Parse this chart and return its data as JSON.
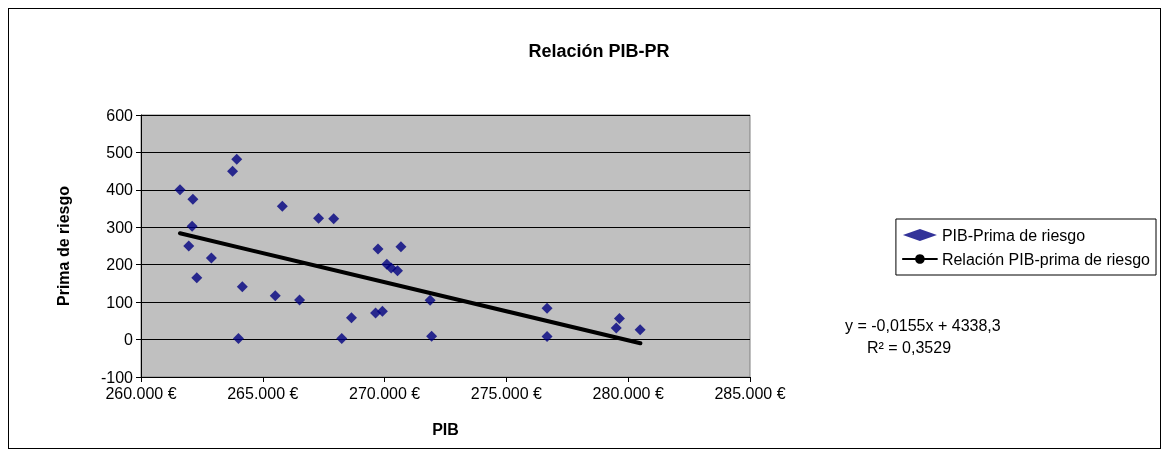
{
  "chart_data": {
    "type": "scatter",
    "title": "Relación PIB-PR",
    "xlabel": "PIB",
    "ylabel": "Prima de riesgo",
    "xlim": [
      260000,
      285000
    ],
    "xticks": [
      {
        "value": 260000,
        "label": "260.000 €"
      },
      {
        "value": 265000,
        "label": "265.000 €"
      },
      {
        "value": 270000,
        "label": "270.000 €"
      },
      {
        "value": 275000,
        "label": "275.000 €"
      },
      {
        "value": 280000,
        "label": "280.000 €"
      },
      {
        "value": 285000,
        "label": "285.000 €"
      }
    ],
    "ylim": [
      -100,
      600
    ],
    "yticks": [
      -100,
      0,
      100,
      200,
      300,
      400,
      500,
      600
    ],
    "grid": "y",
    "legend": "right",
    "marker": "diamond",
    "series": [
      {
        "name": "PIB-Prima de riesgo",
        "color": "#000080",
        "x": [
          261600,
          262130,
          262100,
          261960,
          262290,
          262890,
          263760,
          263930,
          264000,
          264160,
          265800,
          265510,
          266510,
          267290,
          267910,
          268240,
          268640,
          269630,
          269910,
          269730,
          270090,
          270270,
          270530,
          270670,
          271870,
          271930,
          276670,
          276670,
          279640,
          279510,
          280490
        ],
        "values": [
          400,
          375,
          303,
          250,
          165,
          218,
          450,
          482,
          3,
          141,
          356,
          117,
          106,
          324,
          323,
          3,
          58,
          71,
          76,
          242,
          201,
          191,
          184,
          248,
          105,
          9,
          84,
          8,
          56,
          31,
          26
        ]
      },
      {
        "name": "Relación PIB-prima de riesgo",
        "type": "line",
        "color": "#000000",
        "marker": "none",
        "x": [
          261600,
          280500
        ],
        "values": [
          284,
          -10
        ]
      }
    ],
    "annotations": [
      "y = -0,0155x + 4338,3",
      "R² = 0,3529"
    ]
  }
}
